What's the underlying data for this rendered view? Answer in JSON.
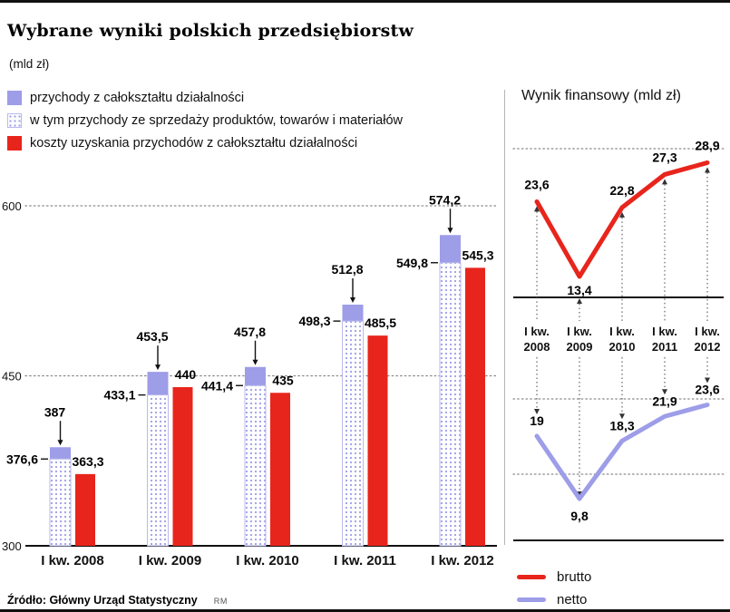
{
  "header": {
    "title": "Wybrane wyniki polskich przedsiębiorstw",
    "unit": "(mld zł)"
  },
  "footer": {
    "source": "Źródło: Główny Urząd Statystyczny",
    "credit": "RM"
  },
  "colors": {
    "purple": "#9d9de8",
    "purple_border": "#b9b9ee",
    "red": "#e8251c",
    "grid": "#8a8a8a",
    "text": "#111111"
  },
  "chart_data": [
    {
      "type": "bar",
      "title": "Wybrane wyniki polskich przedsiębiorstw",
      "unit": "mld zł",
      "categories": [
        "I kw. 2008",
        "I kw. 2009",
        "I kw. 2010",
        "I kw. 2011",
        "I kw. 2012"
      ],
      "series": [
        {
          "name": "przychody z całokształtu działalności",
          "style": "solid-purple",
          "values": [
            387,
            453.5,
            457.8,
            512.8,
            574.2
          ],
          "labels": [
            "387",
            "453,5",
            "457,8",
            "512,8",
            "574,2"
          ]
        },
        {
          "name": "w tym przychody ze sprzedaży produktów, towarów i materiałów",
          "style": "dotted-purple",
          "values": [
            376.6,
            433.1,
            441.4,
            498.3,
            549.8
          ],
          "labels": [
            "376,6",
            "433,1",
            "441,4",
            "498,3",
            "549,8"
          ]
        },
        {
          "name": "koszty uzyskania przychodów z całokształtu działalności",
          "style": "solid-red",
          "values": [
            363.3,
            440,
            435,
            485.5,
            545.3
          ],
          "labels": [
            "363,3",
            "440",
            "435",
            "485,5",
            "545,3"
          ]
        }
      ],
      "ylim": [
        300,
        600
      ],
      "yticks": [
        300,
        450,
        600
      ],
      "grid": "dotted-horizontal",
      "legend_position": "top-left"
    },
    {
      "type": "line",
      "title": "Wynik finansowy (mld zł)",
      "categories": [
        "I kw. 2008",
        "I kw. 2009",
        "I kw. 2010",
        "I kw. 2011",
        "I kw. 2012"
      ],
      "series": [
        {
          "name": "brutto",
          "color": "#e8251c",
          "values": [
            23.6,
            13.4,
            22.8,
            27.3,
            28.9
          ],
          "labels": [
            "23,6",
            "13,4",
            "22,8",
            "27,3",
            "28,9"
          ]
        },
        {
          "name": "netto",
          "color": "#9d9de8",
          "values": [
            19,
            9.8,
            18.3,
            21.9,
            23.6
          ],
          "labels": [
            "19",
            "9,8",
            "18,3",
            "21,9",
            "23,6"
          ]
        }
      ],
      "grid": "dotted-horizontal",
      "legend_position": "bottom-left"
    }
  ]
}
